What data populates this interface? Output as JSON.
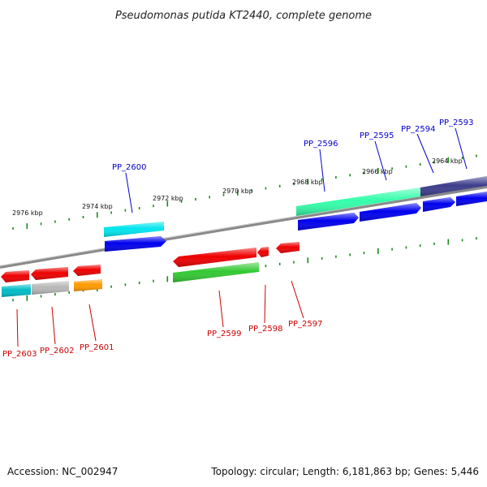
{
  "title": "Pseudomonas putida KT2440, complete genome",
  "footer": {
    "accession": "Accession: NC_002947",
    "summary": "Topology: circular; Length: 6,181,863 bp; Genes: 5,446"
  },
  "colors": {
    "backbone": "#888888",
    "tick": "#1a8a1a",
    "label_top": "#0000cc",
    "label_bottom": "#cc0000"
  },
  "scale_ticks": [
    "2976 kbp",
    "2974 kbp",
    "2972 kbp",
    "2970 kbp",
    "2968 kbp",
    "2966 kbp",
    "2964 kbp"
  ],
  "genes_top": [
    {
      "id": "PP_2600",
      "label": "PP_2600",
      "color": "#00e5ee"
    },
    {
      "id": "PP_2596",
      "label": "PP_2596",
      "color": "#33ffaa"
    },
    {
      "id": "PP_2595",
      "label": "PP_2595",
      "color": "#0000ee"
    },
    {
      "id": "PP_2594",
      "label": "PP_2594",
      "color": "#0000ee"
    },
    {
      "id": "PP_2593",
      "label": "PP_2593",
      "color": "#3d3d8c"
    }
  ],
  "genes_bottom": [
    {
      "id": "PP_2603",
      "label": "PP_2603",
      "color": "#ee0000"
    },
    {
      "id": "PP_2602",
      "label": "PP_2602",
      "color": "#ee0000"
    },
    {
      "id": "PP_2601",
      "label": "PP_2601",
      "color": "#ee0000"
    },
    {
      "id": "PP_2599",
      "label": "PP_2599",
      "color": "#ee0000"
    },
    {
      "id": "PP_2598",
      "label": "PP_2598",
      "color": "#ee0000"
    },
    {
      "id": "PP_2597",
      "label": "PP_2597",
      "color": "#ee0000"
    }
  ]
}
